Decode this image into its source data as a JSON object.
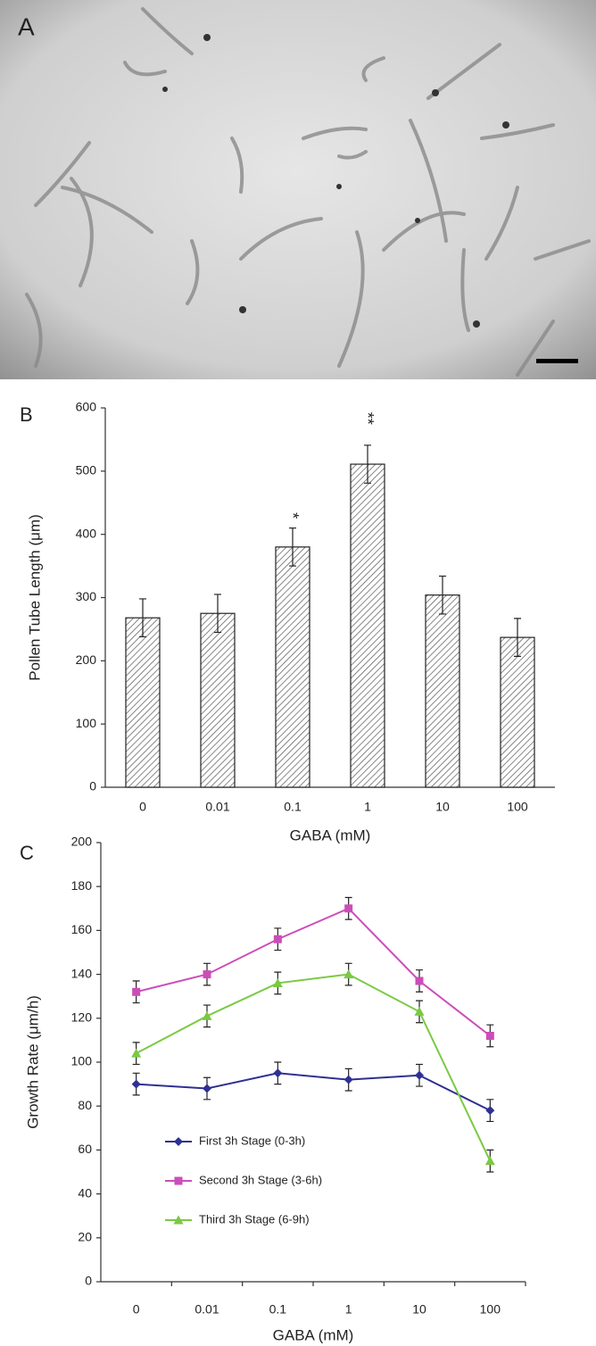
{
  "panel_a": {
    "label": "A"
  },
  "chart_data": [
    {
      "type": "bar",
      "panel_label": "B",
      "categories": [
        "0",
        "0.01",
        "0.1",
        "1",
        "10",
        "100"
      ],
      "values": [
        268,
        275,
        380,
        511,
        304,
        237
      ],
      "errors": [
        30,
        30,
        30,
        30,
        30,
        30
      ],
      "significance": [
        null,
        null,
        "*",
        "**",
        null,
        null
      ],
      "color": "#555555",
      "ylim": [
        0,
        600
      ],
      "yticks": [
        0,
        100,
        200,
        300,
        400,
        500,
        600
      ],
      "xlabel": "GABA (mM)",
      "ylabel": "Pollen Tube Length (μm)"
    },
    {
      "type": "line",
      "panel_label": "C",
      "categories": [
        "0",
        "0.01",
        "0.1",
        "1",
        "10",
        "100"
      ],
      "series": [
        {
          "name": "First 3h Stage (0-3h)",
          "color": "#2e3192",
          "marker": "diamond",
          "values": [
            90,
            88,
            95,
            92,
            94,
            78
          ],
          "errors": [
            5,
            5,
            5,
            5,
            5,
            5
          ]
        },
        {
          "name": "Second 3h Stage (3-6h)",
          "color": "#cc4db8",
          "marker": "square",
          "values": [
            132,
            140,
            156,
            170,
            137,
            112
          ],
          "errors": [
            5,
            5,
            5,
            5,
            5,
            5
          ]
        },
        {
          "name": "Third 3h Stage (6-9h)",
          "color": "#7ac943",
          "marker": "triangle",
          "values": [
            104,
            121,
            136,
            140,
            123,
            55
          ],
          "errors": [
            5,
            5,
            5,
            5,
            5,
            5
          ]
        }
      ],
      "legend": "lower left",
      "ylim": [
        0,
        200
      ],
      "yticks": [
        0,
        20,
        40,
        60,
        80,
        100,
        120,
        140,
        160,
        180,
        200
      ],
      "xlabel": "GABA (mM)",
      "ylabel": "Growth Rate (μm/h)"
    }
  ]
}
